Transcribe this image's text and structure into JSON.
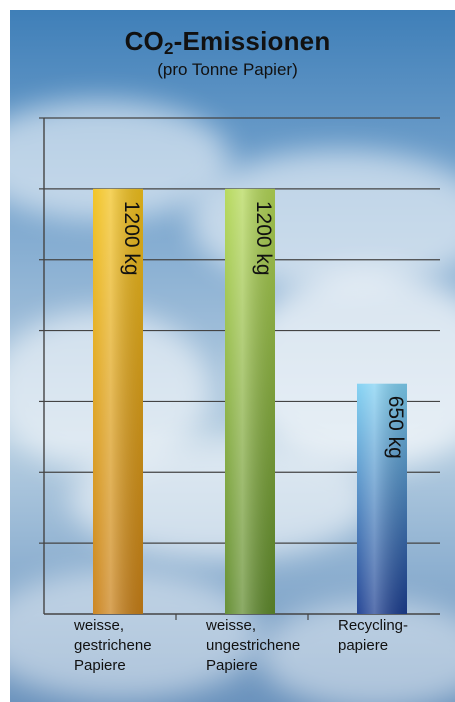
{
  "title_main": "CO",
  "title_sub": "2",
  "title_rest": "-Emissionen",
  "subtitle": "(pro Tonne Papier)",
  "colors": {
    "bar1_top": "#f2c21d",
    "bar1_bottom": "#c98018",
    "bar2_top": "#b4d857",
    "bar2_bottom": "#5f8a2c",
    "bar3_top": "#7fd0f2",
    "bar3_bottom": "#1b3d90",
    "grid": "#444444"
  },
  "chart_data": {
    "type": "bar",
    "title": "CO2-Emissionen",
    "subtitle": "(pro Tonne Papier)",
    "categories": [
      [
        "weisse,",
        "gestrichene",
        "Papiere"
      ],
      [
        "weisse,",
        "ungestrichene",
        "Papiere"
      ],
      [
        "Recycling-",
        "papiere"
      ]
    ],
    "values": [
      1200,
      1200,
      650
    ],
    "value_labels": [
      "1200 kg",
      "1200 kg",
      "650 kg"
    ],
    "ylim": [
      0,
      1400
    ],
    "grid": true,
    "y_tick_labels_shown": false
  }
}
